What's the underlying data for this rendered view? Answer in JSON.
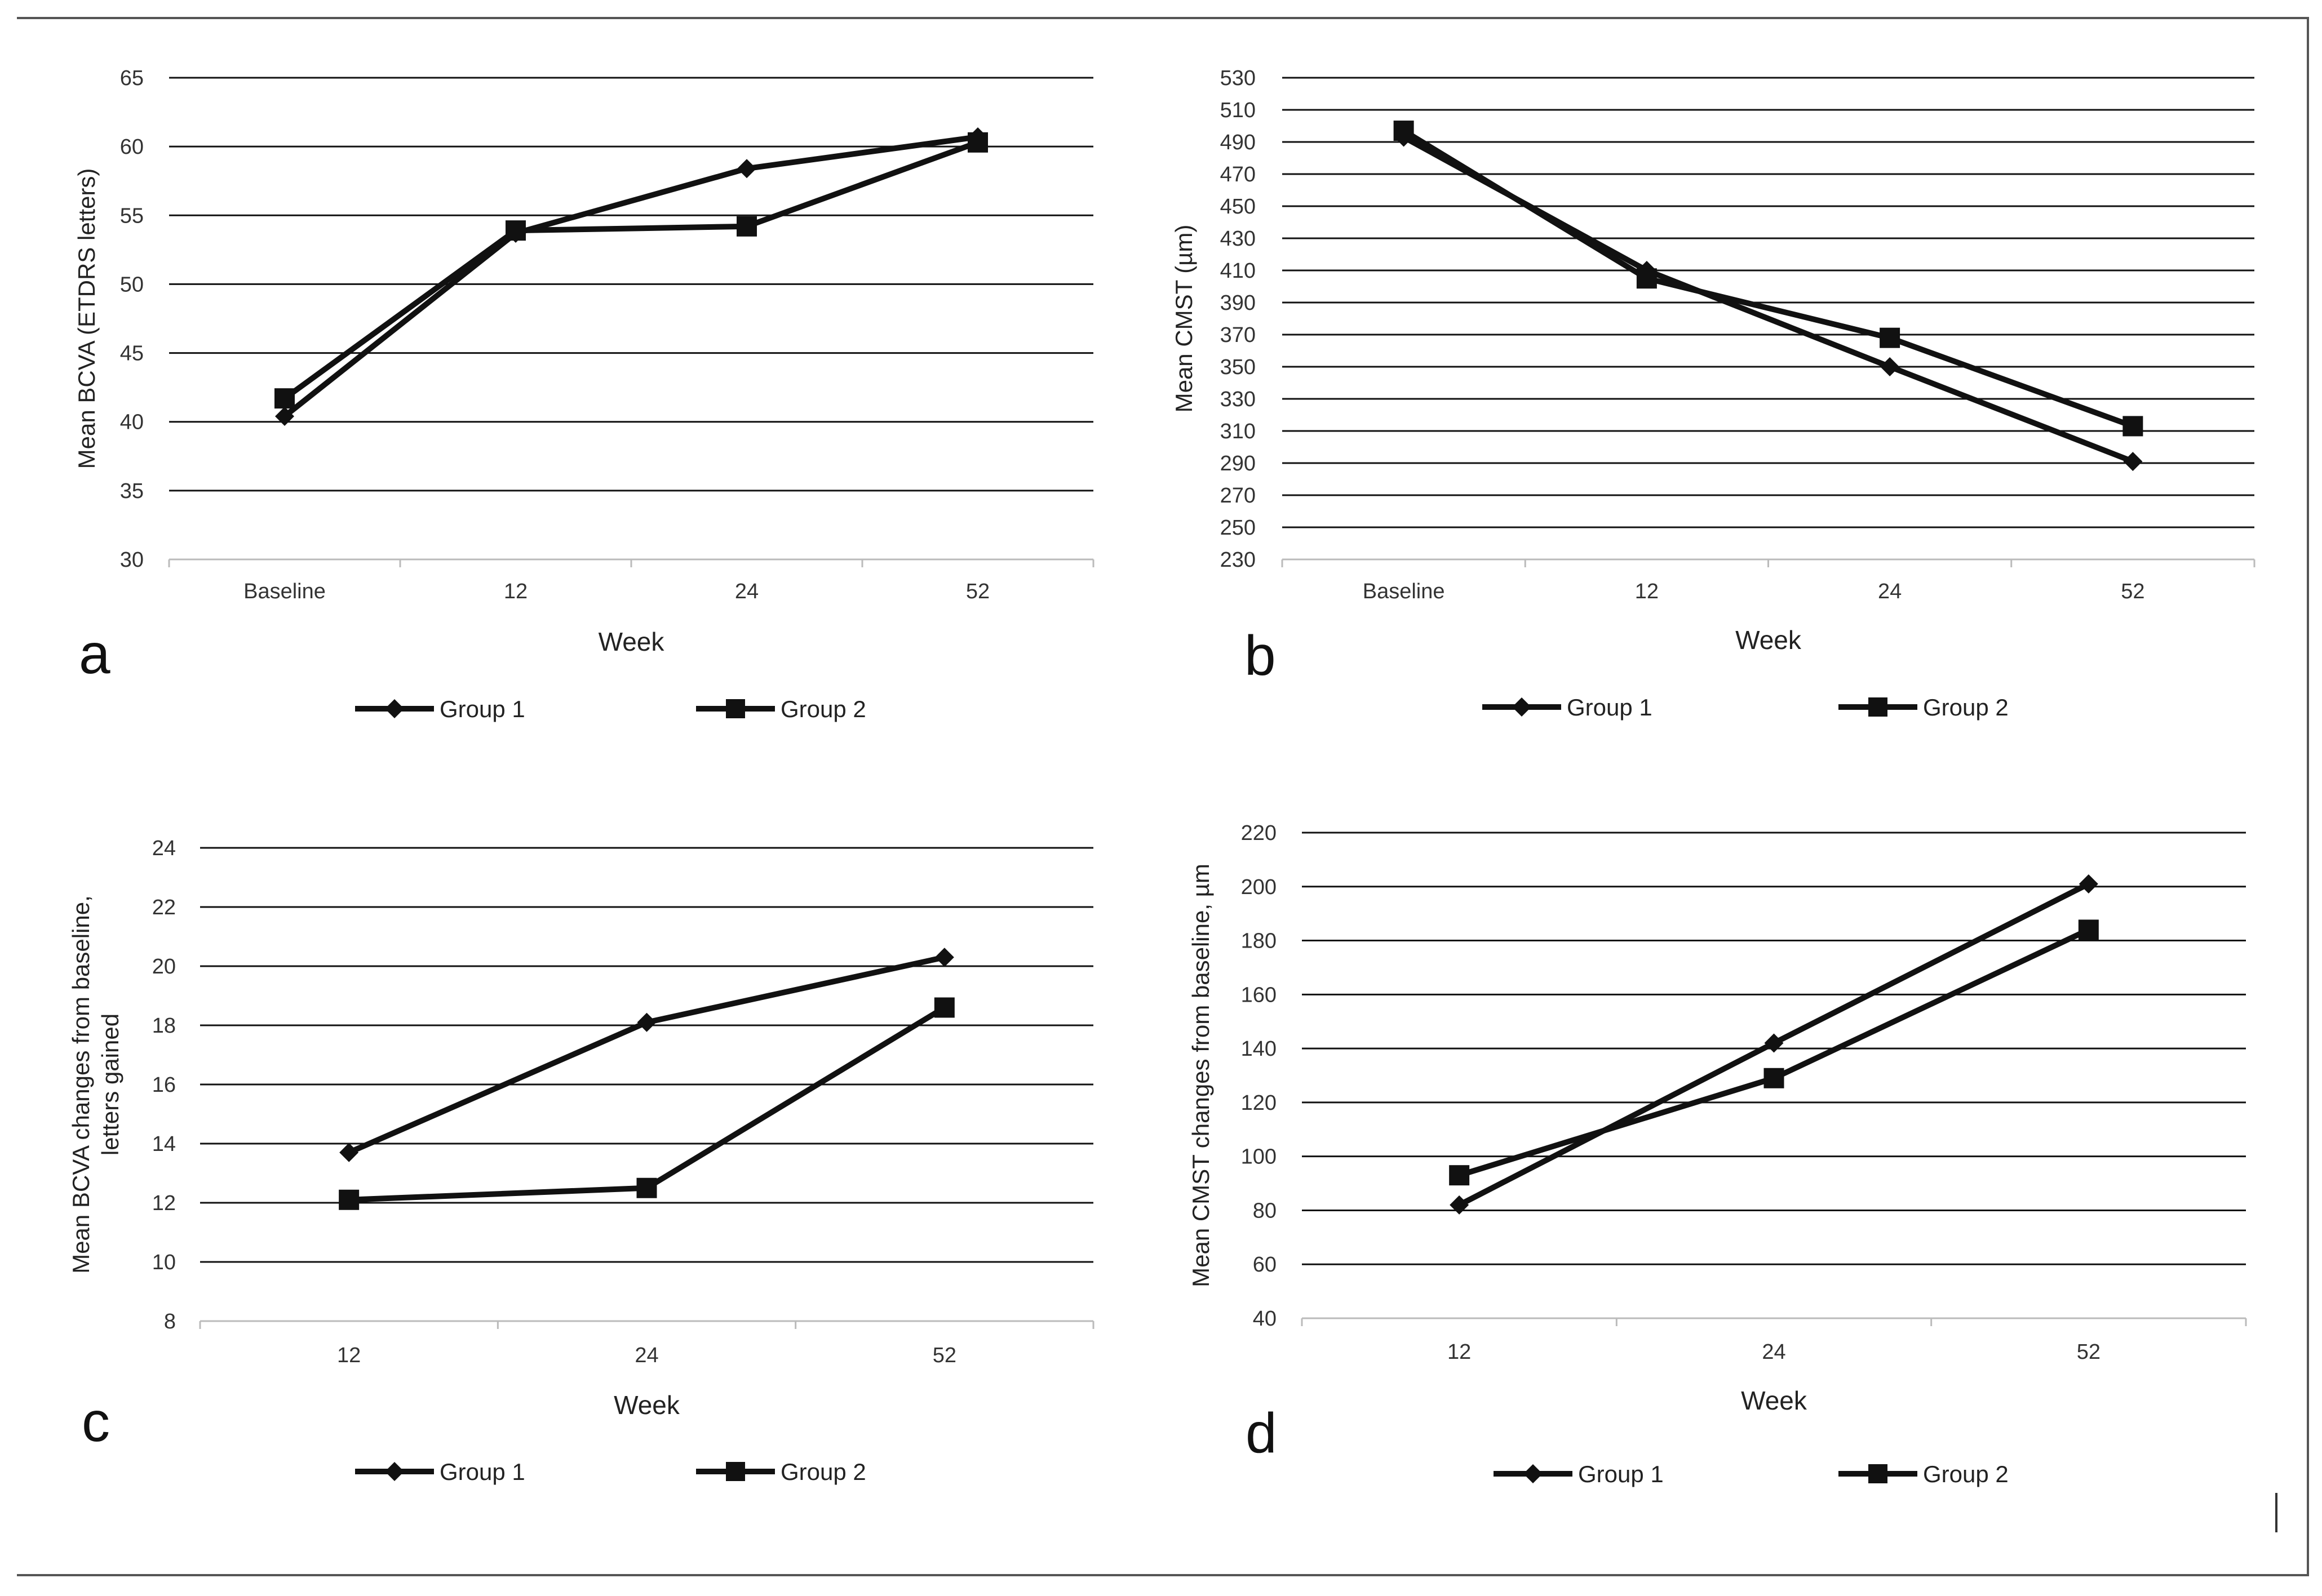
{
  "legend": {
    "group1": "Group 1",
    "group2": "Group 2"
  },
  "chart_data": [
    {
      "id": "a",
      "panel_label": "a",
      "type": "line",
      "categories": [
        "Baseline",
        "12",
        "24",
        "52"
      ],
      "series": [
        {
          "name": "Group 1",
          "marker": "diamond",
          "values": [
            40.4,
            53.7,
            58.4,
            60.7
          ]
        },
        {
          "name": "Group 2",
          "marker": "square",
          "values": [
            41.7,
            53.9,
            54.2,
            60.3
          ]
        }
      ],
      "title": "",
      "xlabel": "Week",
      "ylabel": "Mean BCVA (ETDRS letters)",
      "ylim": [
        30,
        65
      ],
      "yticks": [
        "30",
        "35",
        "40",
        "45",
        "50",
        "55",
        "60",
        "65"
      ],
      "grid": true,
      "legend_position": "bottom"
    },
    {
      "id": "b",
      "panel_label": "b",
      "type": "line",
      "categories": [
        "Baseline",
        "12",
        "24",
        "52"
      ],
      "series": [
        {
          "name": "Group 1",
          "marker": "diamond",
          "values": [
            493,
            410,
            350,
            291
          ]
        },
        {
          "name": "Group 2",
          "marker": "square",
          "values": [
            497,
            405,
            368,
            313
          ]
        }
      ],
      "title": "",
      "xlabel": "Week",
      "ylabel": "Mean CMST (µm)",
      "ylim": [
        230,
        530
      ],
      "yticks": [
        "230",
        "250",
        "270",
        "290",
        "310",
        "330",
        "350",
        "370",
        "390",
        "410",
        "430",
        "450",
        "470",
        "490",
        "510",
        "530"
      ],
      "grid": true,
      "legend_position": "bottom"
    },
    {
      "id": "c",
      "panel_label": "c",
      "type": "line",
      "categories": [
        "12",
        "24",
        "52"
      ],
      "series": [
        {
          "name": "Group 1",
          "marker": "diamond",
          "values": [
            13.7,
            18.1,
            20.3
          ]
        },
        {
          "name": "Group 2",
          "marker": "square",
          "values": [
            12.1,
            12.5,
            18.6
          ]
        }
      ],
      "title": "",
      "xlabel": "Week",
      "ylabel": "Mean BCVA changes from baseline, letters gained",
      "ylabel_lines": [
        "Mean BCVA changes from baseline,",
        "letters gained"
      ],
      "ylim": [
        8,
        24
      ],
      "yticks": [
        "8",
        "10",
        "12",
        "14",
        "16",
        "18",
        "20",
        "22",
        "24"
      ],
      "grid": true,
      "legend_position": "bottom"
    },
    {
      "id": "d",
      "panel_label": "d",
      "type": "line",
      "categories": [
        "12",
        "24",
        "52"
      ],
      "series": [
        {
          "name": "Group 1",
          "marker": "diamond",
          "values": [
            82,
            142,
            201
          ]
        },
        {
          "name": "Group 2",
          "marker": "square",
          "values": [
            93,
            129,
            184
          ]
        }
      ],
      "title": "",
      "xlabel": "Week",
      "ylabel": "Mean CMST changes from baseline, µm",
      "ylim": [
        40,
        220
      ],
      "yticks": [
        "40",
        "60",
        "80",
        "100",
        "120",
        "140",
        "160",
        "180",
        "200",
        "220"
      ],
      "grid": true,
      "legend_position": "bottom"
    }
  ]
}
